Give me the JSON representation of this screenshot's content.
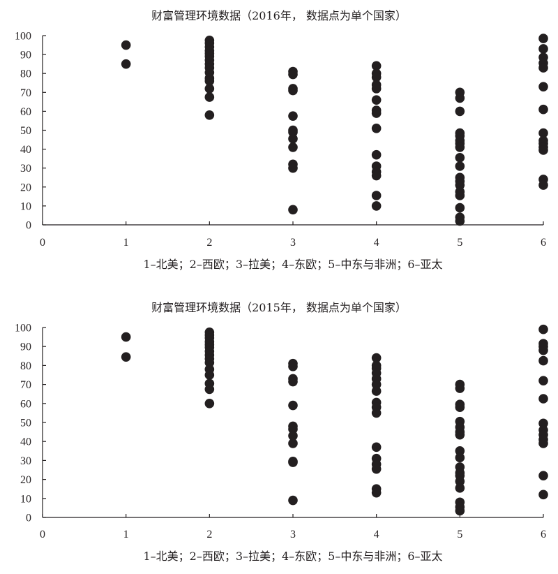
{
  "chart_data": [
    {
      "type": "scatter",
      "title": "财富管理环境数据（2016年，  数据点为单个国家）",
      "xlabel": "1–北美；2–西欧；3–拉美；4–东欧；5–中东与非洲；6–亚太",
      "ylabel": "",
      "xlim": [
        0,
        6
      ],
      "ylim": [
        0,
        100
      ],
      "xticks": [
        "0",
        "1",
        "2",
        "3",
        "4",
        "5",
        "6"
      ],
      "yticks": [
        "0",
        "10",
        "20",
        "30",
        "40",
        "50",
        "60",
        "70",
        "80",
        "90",
        "100"
      ],
      "grid": false,
      "series": [
        {
          "x": 1,
          "y": [
            95,
            85
          ]
        },
        {
          "x": 2,
          "y": [
            97.5,
            96,
            94,
            92,
            90.5,
            89,
            87,
            85,
            83,
            80.5,
            77.5,
            76,
            72,
            67.5,
            58
          ]
        },
        {
          "x": 3,
          "y": [
            81,
            79.5,
            72,
            71,
            57.5,
            50,
            49,
            45.5,
            41,
            32,
            30,
            8
          ]
        },
        {
          "x": 4,
          "y": [
            84,
            80,
            78,
            74,
            72,
            66,
            60.5,
            59,
            51,
            37,
            31,
            28,
            26,
            15.5,
            10
          ]
        },
        {
          "x": 5,
          "y": [
            70,
            67,
            60,
            48.5,
            47,
            44.5,
            43,
            41,
            35.5,
            31,
            25,
            23,
            21,
            17.5,
            15.5,
            9,
            4,
            2
          ]
        },
        {
          "x": 6,
          "y": [
            98.5,
            93,
            88.5,
            85.5,
            83,
            73,
            61,
            48.5,
            44.5,
            43,
            41,
            39.5,
            24,
            21
          ]
        }
      ]
    },
    {
      "type": "scatter",
      "title": "财富管理环境数据（2015年，  数据点为单个国家）",
      "xlabel": "1–北美；2–西欧；3–拉美；4–东欧；5–中东与非洲；6–亚太",
      "ylabel": "",
      "xlim": [
        0,
        6
      ],
      "ylim": [
        0,
        100
      ],
      "xticks": [
        "0",
        "1",
        "2",
        "3",
        "4",
        "5",
        "6"
      ],
      "yticks": [
        "0",
        "10",
        "20",
        "30",
        "40",
        "50",
        "60",
        "70",
        "80",
        "90",
        "100"
      ],
      "grid": false,
      "series": [
        {
          "x": 1,
          "y": [
            95,
            84.5
          ]
        },
        {
          "x": 2,
          "y": [
            97.5,
            96,
            94.5,
            92.5,
            91,
            89.5,
            87.5,
            85.5,
            83.5,
            81.5,
            78,
            75,
            70.5,
            67.5,
            60
          ]
        },
        {
          "x": 3,
          "y": [
            81,
            79.5,
            73,
            71.5,
            59,
            48,
            46.5,
            43,
            39,
            29.5,
            29,
            9
          ]
        },
        {
          "x": 4,
          "y": [
            84,
            80,
            78.5,
            76,
            73,
            70,
            66.5,
            60.5,
            58,
            55,
            37,
            31,
            28,
            25.5,
            15,
            13
          ]
        },
        {
          "x": 5,
          "y": [
            70,
            68,
            59.5,
            58,
            50.5,
            47.5,
            45,
            43.5,
            35,
            31.5,
            26.5,
            23.5,
            22,
            19,
            15.5,
            8,
            5.5,
            3.5
          ]
        },
        {
          "x": 6,
          "y": [
            99,
            91.5,
            90,
            88,
            82.5,
            72,
            62.5,
            49.5,
            46,
            43.5,
            41,
            39,
            22,
            12
          ]
        }
      ]
    }
  ]
}
